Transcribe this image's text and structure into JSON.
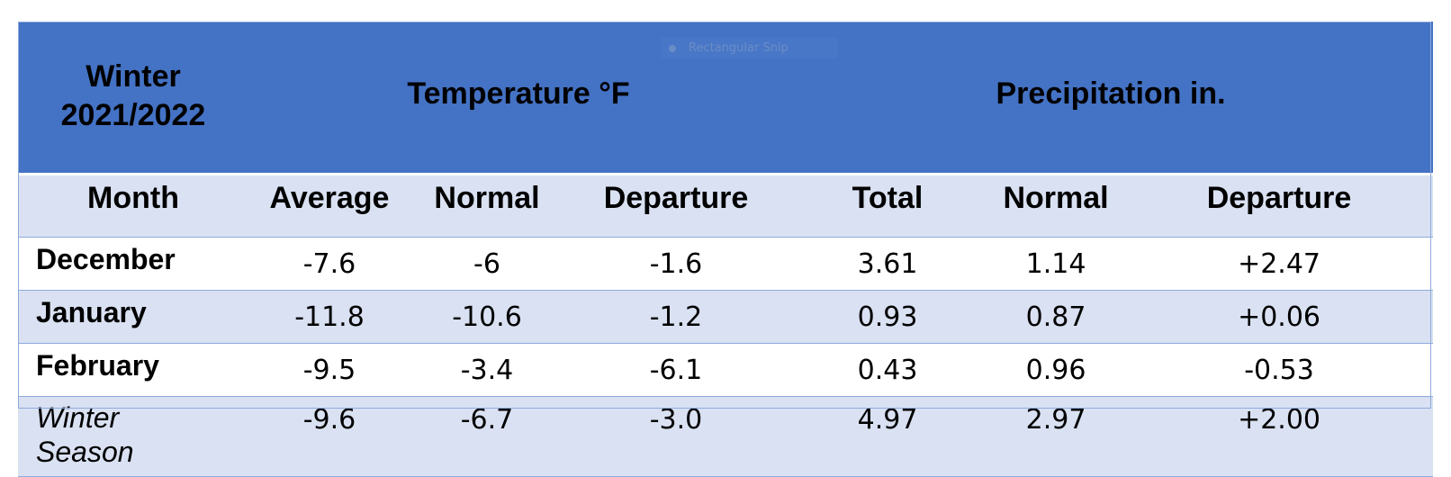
{
  "header": {
    "winter_line1": "Winter",
    "winter_line2": "2021/2022",
    "temperature": "Temperature °F",
    "precipitation": "Precipitation in."
  },
  "columns": [
    "Month",
    "Average",
    "Normal",
    "Departure",
    "Total",
    "Normal",
    "Departure"
  ],
  "rows": [
    {
      "month": "December",
      "avg": "-7.6",
      "tnorm": "-6",
      "tdep": "-1.6",
      "total": "3.61",
      "pnorm": "1.14",
      "pdep": "+2.47"
    },
    {
      "month": "January",
      "avg": "-11.8",
      "tnorm": "-10.6",
      "tdep": "-1.2",
      "total": "0.93",
      "pnorm": "0.87",
      "pdep": "+0.06"
    },
    {
      "month": "February",
      "avg": "-9.5",
      "tnorm": "-3.4",
      "tdep": "-6.1",
      "total": "0.43",
      "pnorm": "0.96",
      "pdep": "-0.53"
    }
  ],
  "season": {
    "line1": "Winter",
    "line2": "Season",
    "avg": "-9.6",
    "tnorm": "-6.7",
    "tdep": "-3.0",
    "total": "4.97",
    "pnorm": "2.97",
    "pdep": "+2.00"
  },
  "overlay": {
    "label": "Rectangular Snip"
  },
  "colors": {
    "header_bg": "#4472c4",
    "band_bg": "#d9e1f2",
    "rule": "#8eaadb"
  }
}
